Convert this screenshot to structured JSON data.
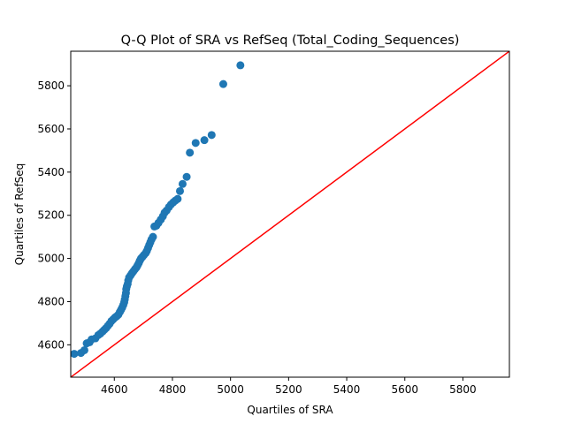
{
  "chart_data": {
    "type": "scatter",
    "title": "Q-Q Plot of SRA vs RefSeq (Total_Coding_Sequences)",
    "xlabel": "Quartiles of SRA",
    "ylabel": "Quartiles of RefSeq",
    "xlim": [
      4450,
      5960
    ],
    "ylim": [
      4450,
      5960
    ],
    "xticks": [
      4600,
      4800,
      5000,
      5200,
      5400,
      5600,
      5800
    ],
    "yticks": [
      4600,
      4800,
      5000,
      5200,
      5400,
      5600,
      5800
    ],
    "grid": false,
    "legend": "none",
    "point_color": "#1f77b4",
    "reference_line": {
      "from": [
        4450,
        4450
      ],
      "to": [
        5960,
        5960
      ],
      "color": "#ff0000"
    },
    "points": [
      [
        4462,
        4558
      ],
      [
        4485,
        4562
      ],
      [
        4497,
        4575
      ],
      [
        4505,
        4607
      ],
      [
        4515,
        4612
      ],
      [
        4522,
        4625
      ],
      [
        4535,
        4630
      ],
      [
        4545,
        4645
      ],
      [
        4552,
        4652
      ],
      [
        4560,
        4662
      ],
      [
        4566,
        4670
      ],
      [
        4572,
        4678
      ],
      [
        4578,
        4688
      ],
      [
        4584,
        4698
      ],
      [
        4590,
        4710
      ],
      [
        4596,
        4718
      ],
      [
        4602,
        4726
      ],
      [
        4608,
        4732
      ],
      [
        4614,
        4740
      ],
      [
        4619,
        4752
      ],
      [
        4623,
        4762
      ],
      [
        4627,
        4772
      ],
      [
        4631,
        4785
      ],
      [
        4634,
        4797
      ],
      [
        4636,
        4810
      ],
      [
        4638,
        4825
      ],
      [
        4640,
        4840
      ],
      [
        4641,
        4858
      ],
      [
        4643,
        4870
      ],
      [
        4646,
        4882
      ],
      [
        4648,
        4898
      ],
      [
        4651,
        4912
      ],
      [
        4656,
        4922
      ],
      [
        4661,
        4932
      ],
      [
        4666,
        4941
      ],
      [
        4671,
        4950
      ],
      [
        4676,
        4958
      ],
      [
        4680,
        4968
      ],
      [
        4684,
        4978
      ],
      [
        4688,
        4990
      ],
      [
        4692,
        5000
      ],
      [
        4697,
        5008
      ],
      [
        4702,
        5016
      ],
      [
        4708,
        5025
      ],
      [
        4712,
        5035
      ],
      [
        4716,
        5048
      ],
      [
        4720,
        5062
      ],
      [
        4724,
        5075
      ],
      [
        4728,
        5088
      ],
      [
        4733,
        5100
      ],
      [
        4738,
        5148
      ],
      [
        4745,
        5152
      ],
      [
        4752,
        5165
      ],
      [
        4760,
        5180
      ],
      [
        4767,
        5195
      ],
      [
        4773,
        5212
      ],
      [
        4780,
        5222
      ],
      [
        4788,
        5238
      ],
      [
        4795,
        5250
      ],
      [
        4803,
        5260
      ],
      [
        4810,
        5268
      ],
      [
        4818,
        5276
      ],
      [
        4826,
        5312
      ],
      [
        4835,
        5345
      ],
      [
        4849,
        5378
      ],
      [
        4860,
        5490
      ],
      [
        4880,
        5535
      ],
      [
        4910,
        5548
      ],
      [
        4935,
        5572
      ],
      [
        4975,
        5808
      ],
      [
        5034,
        5895
      ]
    ]
  }
}
